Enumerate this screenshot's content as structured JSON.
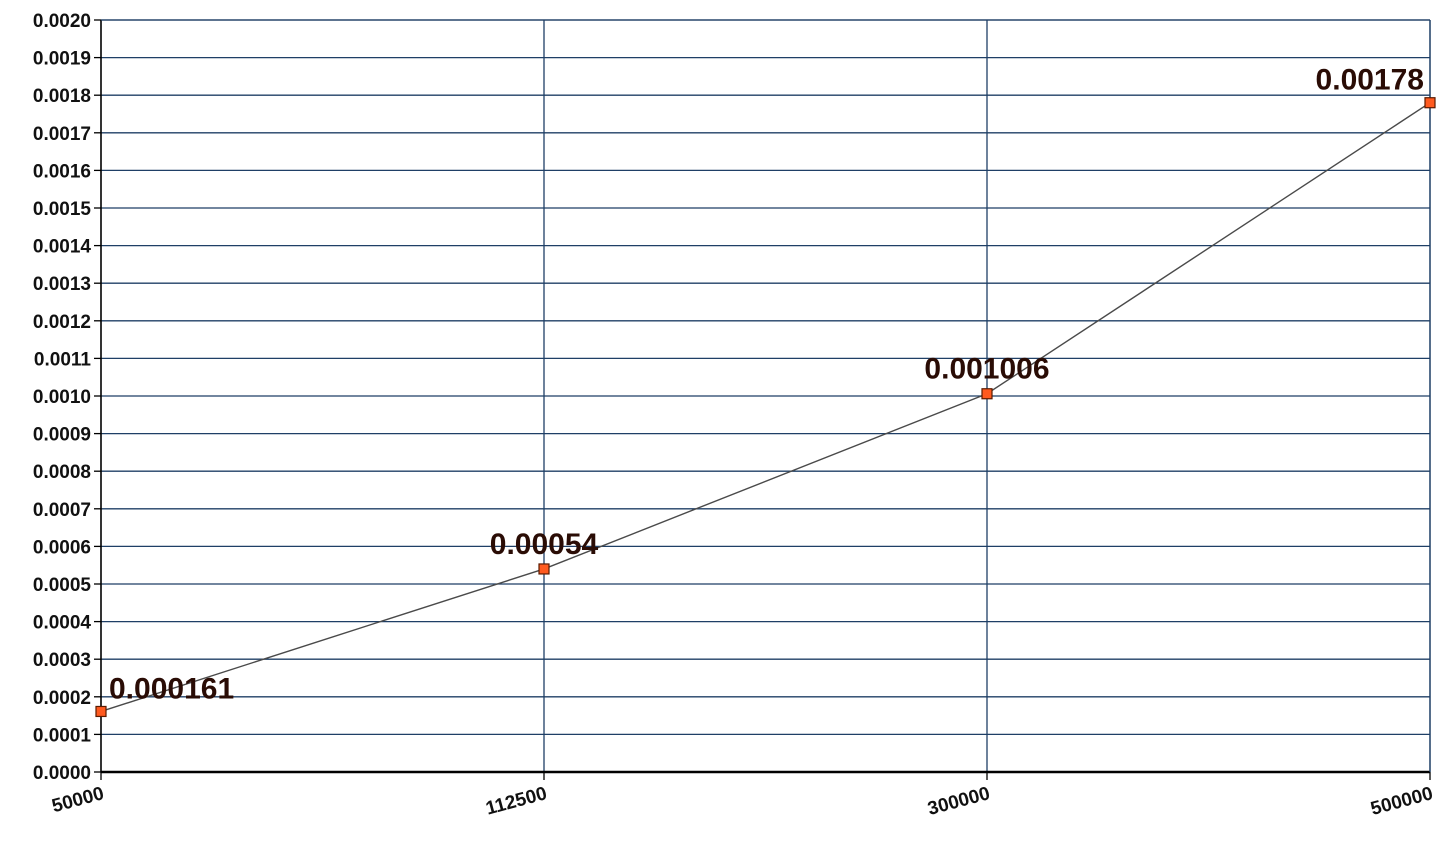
{
  "chart_data": {
    "type": "line",
    "title": "",
    "xlabel": "",
    "ylabel": "",
    "categories": [
      "50000",
      "112500",
      "300000",
      "500000"
    ],
    "series": [
      {
        "values": [
          0.000161,
          0.00054,
          0.001006,
          0.00178
        ],
        "data_labels": [
          "0.000161",
          "0.00054",
          "0.001006",
          "0.00178"
        ]
      }
    ],
    "ylim": [
      0,
      0.002
    ],
    "y_ticks": [
      "0.0000",
      "0.0001",
      "0.0002",
      "0.0003",
      "0.0004",
      "0.0005",
      "0.0006",
      "0.0007",
      "0.0008",
      "0.0009",
      "0.0010",
      "0.0011",
      "0.0012",
      "0.0013",
      "0.0014",
      "0.0015",
      "0.0016",
      "0.0017",
      "0.0018",
      "0.0019",
      "0.0020"
    ],
    "grid": true,
    "legend": "none",
    "colors": {
      "grid": "#1f3f66",
      "line": "#4a4a4a",
      "marker": "#ff5a1f",
      "marker_edge": "#5a1a00",
      "axis": "#000000"
    }
  }
}
